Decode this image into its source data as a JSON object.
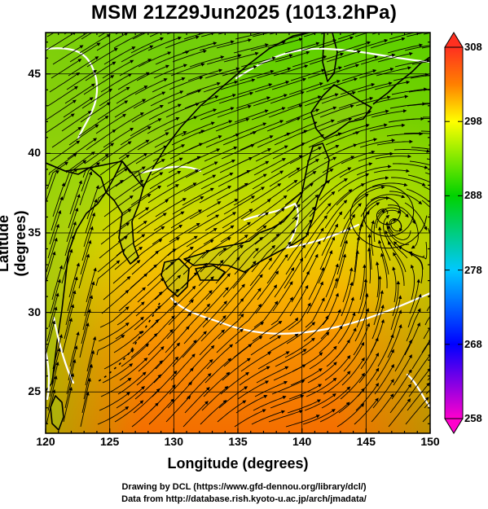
{
  "title": "MSM 21Z29Jun2025 (1013.2hPa)",
  "xlabel": "Longitude (degrees)",
  "ylabel": "Latitude  (degrees)",
  "credits": [
    "Drawing by DCL (https://www.gfd-dennou.org/library/dcl/)",
    "Data from http://database.rish.kyoto-u.ac.jp/arch/jmadata/"
  ],
  "chart_data": {
    "type": "heatmap",
    "title": "MSM 21Z29Jun2025 (1013.2hPa)",
    "xlabel": "Longitude (degrees)",
    "ylabel": "Latitude  (degrees)",
    "xlim": [
      120,
      150
    ],
    "ylim": [
      22.4,
      47.6
    ],
    "x_ticks": [
      120,
      125,
      130,
      135,
      140,
      145,
      150
    ],
    "y_ticks": [
      25,
      30,
      35,
      40,
      45
    ],
    "colorbar": {
      "range": [
        258,
        308
      ],
      "ticks": [
        258,
        268,
        278,
        288,
        298,
        308
      ],
      "colors": [
        "#ff00cc",
        "#0000ff",
        "#00c8ff",
        "#00d200",
        "#ffff00",
        "#ff8000",
        "#ff3020"
      ]
    },
    "overlay": "streamlines",
    "low_center": {
      "lon": 146.5,
      "lat": 36.2
    }
  }
}
